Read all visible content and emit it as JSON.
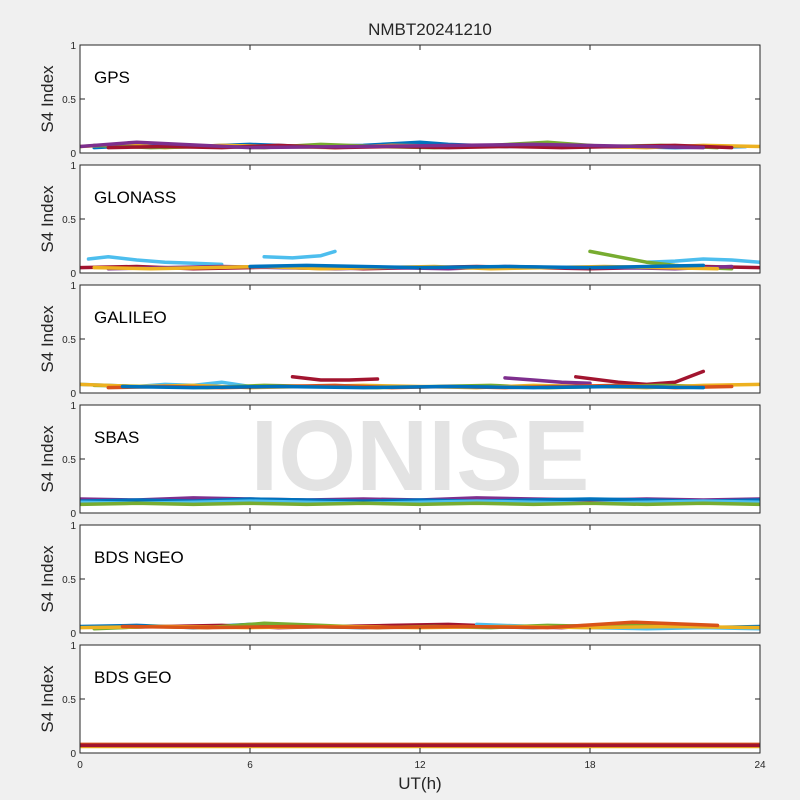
{
  "chart_data": {
    "type": "line",
    "title": "NMBT20241210",
    "watermark": "IONISE",
    "xlabel": "UT(h)",
    "ylabel": "S4 Index",
    "xlim": [
      0,
      24
    ],
    "ylim": [
      0,
      1
    ],
    "xticks": [
      0,
      6,
      12,
      18,
      24
    ],
    "yticks": [
      0,
      0.5,
      1
    ],
    "ytick_labels": [
      "0",
      "0.5",
      "1"
    ],
    "grid": false,
    "colors": [
      "#0072bd",
      "#d95319",
      "#edb120",
      "#7e2f8e",
      "#77ac30",
      "#4dbeee",
      "#a2142f"
    ],
    "panels": [
      {
        "label": "GPS",
        "series": [
          {
            "color": "#0072bd",
            "x": [
              0.5,
              2,
              4,
              6,
              8,
              10,
              12,
              13,
              15,
              17,
              19,
              21,
              23.5
            ],
            "y": [
              0.05,
              0.07,
              0.06,
              0.08,
              0.06,
              0.07,
              0.1,
              0.08,
              0.06,
              0.07,
              0.06,
              0.05,
              0.06
            ]
          },
          {
            "color": "#edb120",
            "x": [
              0,
              1.5,
              3,
              5,
              7,
              9,
              11,
              14,
              16,
              18,
              20,
              22,
              24
            ],
            "y": [
              0.06,
              0.08,
              0.05,
              0.07,
              0.06,
              0.05,
              0.07,
              0.06,
              0.08,
              0.06,
              0.05,
              0.07,
              0.06
            ]
          },
          {
            "color": "#77ac30",
            "x": [
              0.5,
              2.5,
              4.5,
              6.5,
              8.5,
              10.5,
              12.5,
              14.5,
              16.5,
              18.5,
              20.5,
              22.5
            ],
            "y": [
              0.07,
              0.05,
              0.06,
              0.05,
              0.08,
              0.06,
              0.05,
              0.07,
              0.1,
              0.06,
              0.07,
              0.05
            ]
          },
          {
            "color": "#a2142f",
            "x": [
              1,
              3,
              5,
              7,
              9,
              11,
              13,
              15,
              17,
              19,
              21,
              23
            ],
            "y": [
              0.05,
              0.06,
              0.05,
              0.07,
              0.05,
              0.06,
              0.05,
              0.06,
              0.05,
              0.06,
              0.07,
              0.05
            ]
          },
          {
            "color": "#7e2f8e",
            "x": [
              0,
              2,
              6,
              10,
              16,
              22
            ],
            "y": [
              0.06,
              0.1,
              0.05,
              0.06,
              0.08,
              0.05
            ]
          }
        ]
      },
      {
        "label": "GLONASS",
        "series": [
          {
            "color": "#4dbeee",
            "x": [
              0.3,
              1,
              2,
              3,
              4,
              5
            ],
            "y": [
              0.13,
              0.15,
              0.12,
              0.1,
              0.09,
              0.08
            ]
          },
          {
            "color": "#4dbeee",
            "x": [
              6.5,
              7.5,
              8.5,
              9
            ],
            "y": [
              0.15,
              0.14,
              0.16,
              0.2
            ]
          },
          {
            "color": "#4dbeee",
            "x": [
              20,
              21,
              22,
              23,
              24
            ],
            "y": [
              0.1,
              0.11,
              0.13,
              0.12,
              0.1
            ]
          },
          {
            "color": "#77ac30",
            "x": [
              18,
              19,
              20,
              21,
              22,
              23
            ],
            "y": [
              0.2,
              0.15,
              0.1,
              0.07,
              0.05,
              0.04
            ]
          },
          {
            "color": "#a2142f",
            "x": [
              0,
              2,
              4,
              6,
              8,
              10,
              12,
              14,
              16,
              18,
              20,
              22,
              24
            ],
            "y": [
              0.05,
              0.06,
              0.04,
              0.05,
              0.06,
              0.04,
              0.05,
              0.06,
              0.05,
              0.04,
              0.05,
              0.06,
              0.05
            ]
          },
          {
            "color": "#7e2f8e",
            "x": [
              1,
              3,
              5,
              7,
              9,
              11,
              13,
              15,
              17,
              19,
              21,
              23
            ],
            "y": [
              0.04,
              0.05,
              0.06,
              0.05,
              0.04,
              0.05,
              0.04,
              0.06,
              0.05,
              0.05,
              0.04,
              0.06
            ]
          },
          {
            "color": "#edb120",
            "x": [
              0.5,
              2.5,
              4.5,
              6.5,
              8.5,
              10.5,
              12.5,
              14.5,
              16.5,
              18.5,
              20.5,
              22.5
            ],
            "y": [
              0.05,
              0.04,
              0.05,
              0.06,
              0.04,
              0.05,
              0.06,
              0.04,
              0.05,
              0.06,
              0.05,
              0.04
            ]
          },
          {
            "color": "#0072bd",
            "x": [
              6,
              8,
              12,
              15,
              18,
              22
            ],
            "y": [
              0.06,
              0.07,
              0.05,
              0.06,
              0.05,
              0.07
            ]
          }
        ]
      },
      {
        "label": "GALILEO",
        "series": [
          {
            "color": "#a2142f",
            "x": [
              7.5,
              8.5,
              9.5,
              10.5
            ],
            "y": [
              0.15,
              0.12,
              0.12,
              0.13
            ]
          },
          {
            "color": "#a2142f",
            "x": [
              17.5,
              19,
              20,
              21,
              22
            ],
            "y": [
              0.15,
              0.1,
              0.08,
              0.1,
              0.2
            ]
          },
          {
            "color": "#7e2f8e",
            "x": [
              15,
              16,
              17,
              18
            ],
            "y": [
              0.14,
              0.12,
              0.1,
              0.09
            ]
          },
          {
            "color": "#4dbeee",
            "x": [
              0,
              1,
              2,
              3,
              4,
              5,
              6
            ],
            "y": [
              0.08,
              0.07,
              0.06,
              0.08,
              0.07,
              0.1,
              0.06
            ]
          },
          {
            "color": "#77ac30",
            "x": [
              0.5,
              2.5,
              4.5,
              6.5,
              8.5,
              10.5,
              12.5,
              14.5,
              16.5,
              18.5,
              20.5,
              22.5
            ],
            "y": [
              0.07,
              0.06,
              0.05,
              0.07,
              0.06,
              0.05,
              0.06,
              0.07,
              0.05,
              0.06,
              0.07,
              0.06
            ]
          },
          {
            "color": "#edb120",
            "x": [
              0,
              2,
              4,
              6,
              8,
              10,
              12,
              14,
              16,
              18,
              20,
              22,
              24
            ],
            "y": [
              0.08,
              0.06,
              0.07,
              0.05,
              0.06,
              0.07,
              0.06,
              0.05,
              0.07,
              0.06,
              0.05,
              0.07,
              0.08
            ]
          },
          {
            "color": "#d95319",
            "x": [
              1,
              3,
              5,
              7,
              9,
              11,
              13,
              15,
              17,
              19,
              21,
              23
            ],
            "y": [
              0.05,
              0.06,
              0.05,
              0.06,
              0.07,
              0.05,
              0.06,
              0.05,
              0.06,
              0.07,
              0.05,
              0.06
            ]
          },
          {
            "color": "#0072bd",
            "x": [
              1.5,
              4,
              7,
              10,
              13,
              16,
              19,
              22
            ],
            "y": [
              0.06,
              0.05,
              0.06,
              0.05,
              0.06,
              0.05,
              0.06,
              0.05
            ]
          }
        ]
      },
      {
        "label": "SBAS",
        "series": [
          {
            "color": "#7e2f8e",
            "x": [
              0,
              2,
              4,
              6,
              8,
              10,
              12,
              14,
              16,
              18,
              20,
              22,
              24
            ],
            "y": [
              0.13,
              0.12,
              0.14,
              0.13,
              0.12,
              0.13,
              0.12,
              0.14,
              0.13,
              0.12,
              0.13,
              0.12,
              0.13
            ]
          },
          {
            "color": "#0072bd",
            "x": [
              0,
              2,
              4,
              6,
              8,
              10,
              12,
              14,
              16,
              18,
              20,
              22,
              24
            ],
            "y": [
              0.11,
              0.12,
              0.11,
              0.13,
              0.12,
              0.11,
              0.12,
              0.11,
              0.12,
              0.13,
              0.12,
              0.11,
              0.12
            ]
          },
          {
            "color": "#4dbeee",
            "x": [
              0,
              2,
              4,
              6,
              8,
              10,
              12,
              14,
              16,
              18,
              20,
              22,
              24
            ],
            "y": [
              0.1,
              0.09,
              0.1,
              0.11,
              0.1,
              0.09,
              0.1,
              0.11,
              0.1,
              0.09,
              0.1,
              0.11,
              0.1
            ]
          },
          {
            "color": "#77ac30",
            "x": [
              0,
              2,
              4,
              6,
              8,
              10,
              12,
              14,
              16,
              18,
              20,
              22,
              24
            ],
            "y": [
              0.08,
              0.09,
              0.08,
              0.09,
              0.08,
              0.09,
              0.08,
              0.09,
              0.08,
              0.09,
              0.08,
              0.09,
              0.08
            ]
          }
        ]
      },
      {
        "label": "BDS NGEO",
        "series": [
          {
            "color": "#0072bd",
            "x": [
              0,
              2,
              4,
              6,
              8,
              10,
              12,
              14,
              16,
              18,
              20,
              22,
              24
            ],
            "y": [
              0.06,
              0.07,
              0.05,
              0.08,
              0.06,
              0.05,
              0.07,
              0.06,
              0.05,
              0.07,
              0.06,
              0.05,
              0.06
            ]
          },
          {
            "color": "#a2142f",
            "x": [
              1,
              3,
              5,
              7,
              9,
              11,
              13,
              15,
              17,
              19,
              21,
              23
            ],
            "y": [
              0.05,
              0.06,
              0.07,
              0.05,
              0.06,
              0.07,
              0.08,
              0.06,
              0.05,
              0.08,
              0.06,
              0.05
            ]
          },
          {
            "color": "#4dbeee",
            "x": [
              14,
              16,
              18,
              20,
              22,
              24
            ],
            "y": [
              0.08,
              0.06,
              0.05,
              0.04,
              0.05,
              0.04
            ]
          },
          {
            "color": "#77ac30",
            "x": [
              0.5,
              2.5,
              4.5,
              6.5,
              8.5,
              10.5,
              12.5,
              14.5,
              16.5,
              18.5,
              20.5,
              22.5
            ],
            "y": [
              0.04,
              0.06,
              0.05,
              0.09,
              0.07,
              0.05,
              0.06,
              0.05,
              0.07,
              0.06,
              0.08,
              0.06
            ]
          },
          {
            "color": "#edb120",
            "x": [
              0,
              3,
              6,
              9,
              12,
              15,
              18,
              21,
              24
            ],
            "y": [
              0.05,
              0.06,
              0.05,
              0.06,
              0.05,
              0.06,
              0.05,
              0.06,
              0.05
            ]
          },
          {
            "color": "#d95319",
            "x": [
              1.5,
              4.5,
              7.5,
              10.5,
              13.5,
              16.5,
              19.5,
              22.5
            ],
            "y": [
              0.06,
              0.05,
              0.06,
              0.05,
              0.06,
              0.05,
              0.1,
              0.07
            ]
          }
        ]
      },
      {
        "label": "BDS GEO",
        "series": [
          {
            "color": "#edb120",
            "x": [
              0,
              4,
              8,
              12,
              16,
              20,
              24
            ],
            "y": [
              0.06,
              0.06,
              0.06,
              0.06,
              0.06,
              0.06,
              0.06
            ]
          },
          {
            "color": "#d95319",
            "x": [
              0,
              4,
              8,
              12,
              16,
              20,
              24
            ],
            "y": [
              0.08,
              0.08,
              0.08,
              0.08,
              0.08,
              0.08,
              0.08
            ]
          },
          {
            "color": "#a2142f",
            "x": [
              0,
              4,
              8,
              12,
              16,
              20,
              24
            ],
            "y": [
              0.07,
              0.07,
              0.07,
              0.07,
              0.07,
              0.07,
              0.07
            ]
          }
        ]
      }
    ]
  }
}
